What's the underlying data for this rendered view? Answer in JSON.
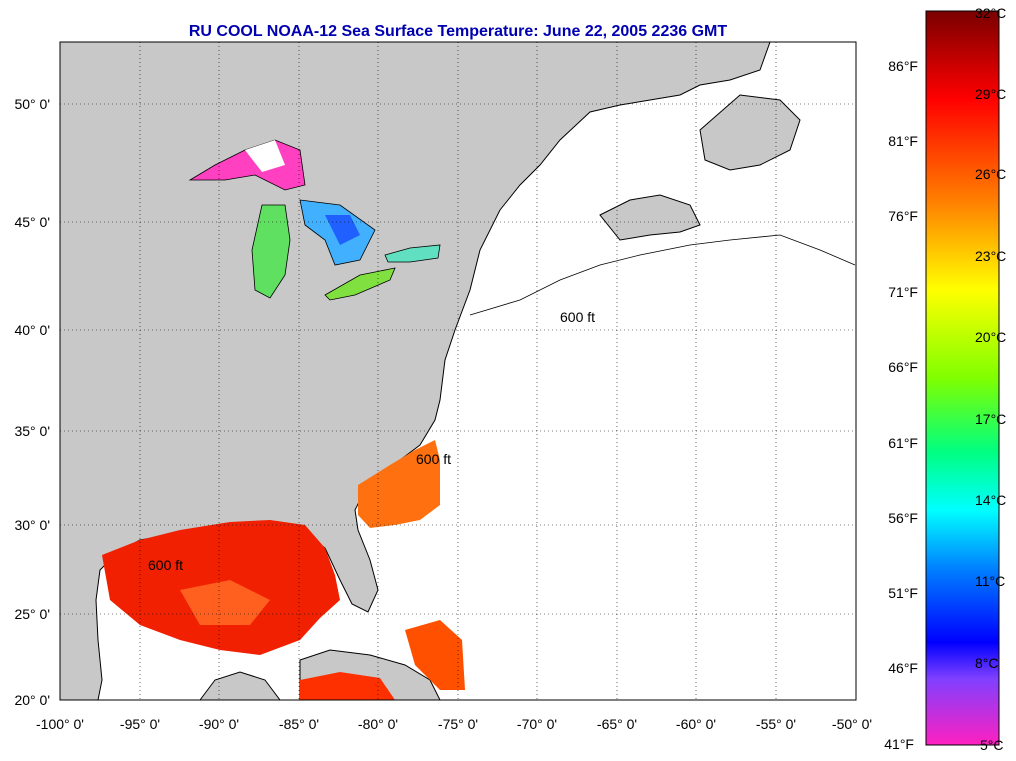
{
  "title": "RU COOL  NOAA-12  Sea Surface Temperature:  June 22, 2005 2236 GMT",
  "lat_labels": [
    "50° 0'",
    "45° 0'",
    "40° 0'",
    "35° 0'",
    "30° 0'",
    "25° 0'",
    "20° 0'"
  ],
  "lon_labels": [
    "-100° 0'",
    "-95° 0'",
    "-90° 0'",
    "-85° 0'",
    "-80° 0'",
    "-75° 0'",
    "-70° 0'",
    "-65° 0'",
    "-60° 0'",
    "-55° 0'",
    "-50° 0'"
  ],
  "colorbar": {
    "celsius": [
      "32°C",
      "29°C",
      "26°C",
      "23°C",
      "20°C",
      "17°C",
      "14°C",
      "11°C",
      "8°C",
      "5°C"
    ],
    "fahrenheit": [
      "86°F",
      "81°F",
      "76°F",
      "71°F",
      "66°F",
      "61°F",
      "56°F",
      "51°F",
      "46°F",
      "41°F"
    ]
  },
  "isobath_label": "600 ft",
  "colors": {
    "title": "#0000b0",
    "land": "#c8c8c8",
    "ocean": "#ffffff"
  }
}
